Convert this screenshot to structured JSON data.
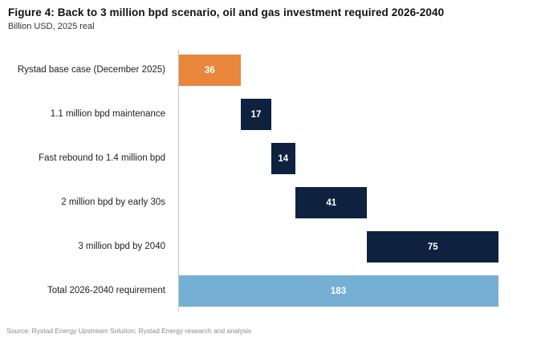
{
  "header": {
    "title": "Figure 4: Back to 3 million bpd scenario, oil and gas investment required 2026-2040",
    "subtitle": "Billion USD, 2025 real"
  },
  "source": "Source: Rystad Energy Upstream Solution; Rystad Energy research and analysis",
  "colors": {
    "base_bar": "#E8873B",
    "increment_bar": "#0E2240",
    "total_bar": "#75AFD4",
    "axis_line": "#C2C2C2",
    "value_text": "#FFFFFF"
  },
  "chart_data": {
    "type": "bar",
    "subtype": "waterfall",
    "orientation": "horizontal",
    "title": "Figure 4: Back to 3 million bpd scenario, oil and gas investment required 2026-2040",
    "subtitle": "Billion USD, 2025 real",
    "xlabel": "",
    "ylabel": "",
    "xlim": [
      0,
      183
    ],
    "grid": false,
    "legend": false,
    "value_labels": "inside-center",
    "categories": [
      "Rystad base case (December 2025)",
      "1.1 million bpd maintenance",
      "Fast rebound to 1.4 million bpd",
      "2 million bpd by early 30s",
      "3 million bpd by 2040",
      "Total 2026-2040 requirement"
    ],
    "bars": [
      {
        "label": "Rystad base case (December 2025)",
        "value": 36,
        "start": 0,
        "color": "#E8873B",
        "role": "base"
      },
      {
        "label": "1.1 million bpd maintenance",
        "value": 17,
        "start": 36,
        "color": "#0E2240",
        "role": "increment"
      },
      {
        "label": "Fast rebound to 1.4 million bpd",
        "value": 14,
        "start": 53,
        "color": "#0E2240",
        "role": "increment"
      },
      {
        "label": "2 million bpd by early 30s",
        "value": 41,
        "start": 67,
        "color": "#0E2240",
        "role": "increment"
      },
      {
        "label": "3 million bpd by 2040",
        "value": 75,
        "start": 108,
        "color": "#0E2240",
        "role": "increment"
      },
      {
        "label": "Total 2026-2040 requirement",
        "value": 183,
        "start": 0,
        "color": "#75AFD4",
        "role": "total"
      }
    ]
  }
}
